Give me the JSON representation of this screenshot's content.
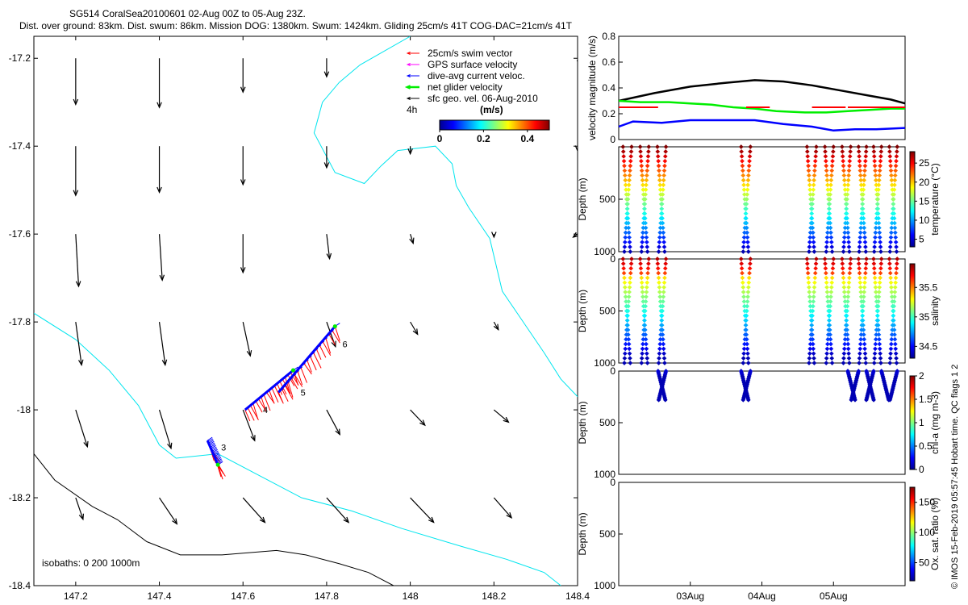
{
  "header": {
    "line1": "SG514 CoralSea20100601 02-Aug 00Z to 05-Aug 23Z.",
    "line2": "Dist. over ground: 83km. Dist. swum: 86km. Mission DOG: 1380km. Swum: 1424km. Gliding 25cm/s 41T COG-DAC=21cm/s 41T"
  },
  "footer_note": "© IMOS 15-Feb-2019 05:57:45 Hobart time. QC flags 1  2",
  "colors": {
    "coast": "#00e5ee",
    "isobath": "#000000",
    "swim": "#ff0000",
    "gps": "#ff00ff",
    "dac": "#0000ff",
    "net": "#00ee00",
    "sfc": "#000000"
  },
  "chart_data": [
    {
      "type": "map",
      "name": "track-map",
      "xlim": [
        147.1,
        148.4
      ],
      "ylim": [
        -18.4,
        -17.15
      ],
      "x_ticks": [
        "147.2",
        "147.4",
        "147.6",
        "147.8",
        "148",
        "148.2",
        "148.4"
      ],
      "y_ticks": [
        "-17.2",
        "-17.4",
        "-17.6",
        "-17.8",
        "-18",
        "-18.2",
        "-18.4"
      ],
      "legend": {
        "entries": [
          {
            "label": "25cm/s swim vector",
            "color": "#ff0000"
          },
          {
            "label": "GPS surface velocity",
            "color": "#ff00ff"
          },
          {
            "label": "dive-avg current veloc.",
            "color": "#0000ff"
          },
          {
            "label": "net glider velocity",
            "color": "#00ee00"
          },
          {
            "label": "sfc geo. vel. 06-Aug-2010",
            "color": "#000000"
          }
        ],
        "interval_label": "4h",
        "colorbar_units": "(m/s)",
        "colorbar_ticks": [
          "0",
          "0.2",
          "0.4"
        ],
        "colorbar_range": [
          0,
          0.5
        ],
        "placement": "top-right"
      },
      "isobaths_label": "isobaths: 0   200  1000m",
      "day_labels": [
        "3",
        "4",
        "5",
        "6"
      ],
      "track_segments": [
        {
          "day": "3",
          "start": [
            147.515,
            -18.07
          ],
          "end": [
            147.54,
            -18.125
          ]
        },
        {
          "day": "4",
          "start": [
            147.605,
            -18.0
          ],
          "end": [
            147.72,
            -17.91
          ]
        },
        {
          "day": "5",
          "start": [
            147.685,
            -17.96
          ],
          "end": [
            147.82,
            -17.81
          ]
        }
      ],
      "coastline": [
        [
          148.0,
          -17.15
        ],
        [
          147.88,
          -17.215
        ],
        [
          147.83,
          -17.255
        ],
        [
          147.79,
          -17.3
        ],
        [
          147.77,
          -17.37
        ],
        [
          147.82,
          -17.46
        ],
        [
          147.89,
          -17.485
        ],
        [
          147.93,
          -17.445
        ],
        [
          147.97,
          -17.41
        ],
        [
          148.06,
          -17.4
        ],
        [
          148.1,
          -17.44
        ],
        [
          148.11,
          -17.49
        ],
        [
          148.14,
          -17.54
        ],
        [
          148.19,
          -17.61
        ],
        [
          148.22,
          -17.73
        ],
        [
          148.27,
          -17.8
        ],
        [
          148.32,
          -17.87
        ],
        [
          148.36,
          -17.93
        ],
        [
          148.4,
          -17.97
        ]
      ],
      "coast_lower": [
        [
          147.1,
          -17.78
        ],
        [
          147.2,
          -17.84
        ],
        [
          147.28,
          -17.91
        ],
        [
          147.35,
          -17.99
        ],
        [
          147.4,
          -18.08
        ],
        [
          147.44,
          -18.11
        ],
        [
          147.54,
          -18.1
        ],
        [
          147.64,
          -18.15
        ],
        [
          147.74,
          -18.2
        ],
        [
          147.86,
          -18.23
        ],
        [
          147.98,
          -18.27
        ],
        [
          148.12,
          -18.31
        ],
        [
          148.23,
          -18.34
        ],
        [
          148.32,
          -18.37
        ],
        [
          148.36,
          -18.4
        ]
      ],
      "isobath_1000": [
        [
          147.1,
          -18.1
        ],
        [
          147.15,
          -18.16
        ],
        [
          147.24,
          -18.22
        ],
        [
          147.3,
          -18.25
        ],
        [
          147.37,
          -18.3
        ],
        [
          147.45,
          -18.33
        ],
        [
          147.55,
          -18.33
        ],
        [
          147.68,
          -18.32
        ],
        [
          147.75,
          -18.33
        ],
        [
          147.83,
          -18.35
        ],
        [
          147.9,
          -18.37
        ],
        [
          147.96,
          -18.4
        ]
      ],
      "sfc_vectors": [
        {
          "x": 147.2,
          "y": -17.2,
          "u": 0.0,
          "v": -0.3
        },
        {
          "x": 147.4,
          "y": -17.2,
          "u": 0.0,
          "v": -0.32
        },
        {
          "x": 147.6,
          "y": -17.2,
          "u": 0.0,
          "v": -0.22
        },
        {
          "x": 147.8,
          "y": -17.2,
          "u": 0.0,
          "v": -0.12
        },
        {
          "x": 148.4,
          "y": -17.2,
          "u": 0.03,
          "v": -0.03
        },
        {
          "x": 147.2,
          "y": -17.4,
          "u": 0.0,
          "v": -0.32
        },
        {
          "x": 147.4,
          "y": -17.4,
          "u": 0.0,
          "v": -0.3
        },
        {
          "x": 147.6,
          "y": -17.4,
          "u": 0.0,
          "v": -0.25
        },
        {
          "x": 147.8,
          "y": -17.4,
          "u": 0.0,
          "v": -0.14
        },
        {
          "x": 148.0,
          "y": -17.4,
          "u": 0.0,
          "v": -0.05
        },
        {
          "x": 148.4,
          "y": -17.4,
          "u": 0.0,
          "v": -0.03
        },
        {
          "x": 147.2,
          "y": -17.6,
          "u": 0.02,
          "v": -0.34
        },
        {
          "x": 147.4,
          "y": -17.6,
          "u": 0.02,
          "v": -0.3
        },
        {
          "x": 147.6,
          "y": -17.6,
          "u": 0.0,
          "v": -0.25
        },
        {
          "x": 147.8,
          "y": -17.6,
          "u": 0.02,
          "v": -0.16
        },
        {
          "x": 148.0,
          "y": -17.6,
          "u": 0.02,
          "v": -0.06
        },
        {
          "x": 148.2,
          "y": -17.6,
          "u": 0.0,
          "v": -0.02
        },
        {
          "x": 148.4,
          "y": -17.6,
          "u": -0.03,
          "v": -0.02
        },
        {
          "x": 147.2,
          "y": -17.8,
          "u": 0.04,
          "v": -0.28
        },
        {
          "x": 147.4,
          "y": -17.8,
          "u": 0.04,
          "v": -0.28
        },
        {
          "x": 147.6,
          "y": -17.8,
          "u": 0.05,
          "v": -0.22
        },
        {
          "x": 147.8,
          "y": -17.8,
          "u": 0.06,
          "v": -0.16
        },
        {
          "x": 148.0,
          "y": -17.8,
          "u": 0.05,
          "v": -0.08
        },
        {
          "x": 148.2,
          "y": -17.8,
          "u": 0.03,
          "v": -0.05
        },
        {
          "x": 147.2,
          "y": -18.0,
          "u": 0.08,
          "v": -0.24
        },
        {
          "x": 147.4,
          "y": -18.0,
          "u": 0.08,
          "v": -0.25
        },
        {
          "x": 147.6,
          "y": -18.0,
          "u": 0.08,
          "v": -0.2
        },
        {
          "x": 147.8,
          "y": -18.0,
          "u": 0.09,
          "v": -0.16
        },
        {
          "x": 148.0,
          "y": -18.0,
          "u": 0.1,
          "v": -0.1
        },
        {
          "x": 148.2,
          "y": -18.0,
          "u": 0.1,
          "v": -0.08
        },
        {
          "x": 147.2,
          "y": -18.2,
          "u": 0.05,
          "v": -0.14
        },
        {
          "x": 147.4,
          "y": -18.2,
          "u": 0.12,
          "v": -0.17
        },
        {
          "x": 147.6,
          "y": -18.2,
          "u": 0.15,
          "v": -0.16
        },
        {
          "x": 147.8,
          "y": -18.2,
          "u": 0.15,
          "v": -0.16
        },
        {
          "x": 148.0,
          "y": -18.2,
          "u": 0.16,
          "v": -0.16
        },
        {
          "x": 148.2,
          "y": -18.2,
          "u": 0.12,
          "v": -0.13
        }
      ]
    },
    {
      "type": "line",
      "name": "velocity-magnitude",
      "ylabel": "velocity magnitude (m/s)",
      "xlim": [
        2.0,
        6.0
      ],
      "ylim": [
        0,
        0.8
      ],
      "y_ticks": [
        "0",
        "0.2",
        "0.4",
        "0.6",
        "0.8"
      ],
      "series": [
        {
          "color": "#000000",
          "x": [
            2.0,
            2.5,
            3.0,
            3.5,
            3.9,
            4.3,
            4.7,
            5.1,
            5.5,
            5.8,
            6.0
          ],
          "values": [
            0.3,
            0.36,
            0.41,
            0.44,
            0.46,
            0.45,
            0.42,
            0.38,
            0.34,
            0.31,
            0.28
          ]
        },
        {
          "color": "#00ee00",
          "x": [
            2.0,
            2.3,
            2.7,
            3.0,
            3.3,
            3.6,
            3.9,
            4.2,
            4.6,
            4.9,
            5.2,
            5.5,
            5.8,
            6.0
          ],
          "values": [
            0.3,
            0.29,
            0.29,
            0.28,
            0.27,
            0.25,
            0.24,
            0.22,
            0.21,
            0.21,
            0.22,
            0.23,
            0.24,
            0.24
          ]
        },
        {
          "color": "#0000ff",
          "x": [
            2.0,
            2.2,
            2.6,
            3.0,
            3.5,
            3.9,
            4.3,
            4.7,
            5.0,
            5.3,
            5.6,
            6.0
          ],
          "values": [
            0.1,
            0.14,
            0.13,
            0.15,
            0.15,
            0.15,
            0.12,
            0.1,
            0.07,
            0.08,
            0.08,
            0.09
          ]
        },
        {
          "color": "#ff0000",
          "segments": [
            [
              2.0,
              2.55,
              0.25
            ],
            [
              3.78,
              4.11,
              0.25
            ],
            [
              4.7,
              5.17,
              0.25
            ],
            [
              5.2,
              6.0,
              0.25
            ]
          ]
        }
      ]
    },
    {
      "type": "scatter",
      "name": "temperature-section",
      "ylabel": "Depth (m)",
      "colorbar_label": "temperature (°C)",
      "ylim": [
        1000,
        0
      ],
      "y_ticks": [
        "500",
        "1000"
      ],
      "colorbar_ticks": [
        "5",
        "10",
        "15",
        "20",
        "25"
      ],
      "colorbar_range": [
        3,
        28
      ],
      "profile_depth_max": 1000,
      "profiles": [
        2.06,
        2.18,
        2.3,
        2.42,
        2.54,
        2.66,
        3.71,
        3.84,
        4.63,
        4.76,
        4.88,
        5.0,
        5.12,
        5.24,
        5.35,
        5.46,
        5.56,
        5.67,
        5.78,
        5.89
      ]
    },
    {
      "type": "scatter",
      "name": "salinity-section",
      "ylabel": "Depth (m)",
      "colorbar_label": "salinity",
      "ylim": [
        1000,
        0
      ],
      "y_ticks": [
        "0",
        "500",
        "1000"
      ],
      "colorbar_ticks": [
        "34.5",
        "35",
        "35.5"
      ],
      "colorbar_range": [
        34.3,
        35.9
      ],
      "profile_depth_max": 1000,
      "profiles": [
        2.06,
        2.18,
        2.3,
        2.42,
        2.54,
        2.66,
        3.71,
        3.84,
        4.63,
        4.76,
        4.88,
        5.0,
        5.12,
        5.24,
        5.35,
        5.46,
        5.56,
        5.67,
        5.78,
        5.89
      ]
    },
    {
      "type": "scatter",
      "name": "chla-section",
      "ylabel": "Depth (m)",
      "colorbar_label": "chl-a (mg m-3)",
      "ylim": [
        1000,
        0
      ],
      "y_ticks": [
        "0",
        "500",
        "1000"
      ],
      "colorbar_ticks": [
        "0",
        "0.5",
        "1",
        "1.5",
        "2"
      ],
      "colorbar_range": [
        0,
        2
      ],
      "profile_depth_max": 280,
      "profiles": [
        2.55,
        2.66,
        3.71,
        3.84,
        5.2,
        5.35,
        5.46,
        5.56,
        5.67,
        5.89
      ]
    },
    {
      "type": "scatter",
      "name": "oxygen-section",
      "ylabel": "Depth (m)",
      "colorbar_label": "Ox. sat. ratio (%)",
      "ylim": [
        1000,
        0
      ],
      "y_ticks": [
        "0",
        "500",
        "1000"
      ],
      "colorbar_ticks": [
        "50",
        "100",
        "150"
      ],
      "colorbar_range": [
        20,
        175
      ],
      "x_ticks": [
        "03Aug",
        "04Aug",
        "05Aug"
      ],
      "x_tick_values": [
        3.0,
        4.0,
        5.0
      ],
      "profiles": []
    }
  ]
}
